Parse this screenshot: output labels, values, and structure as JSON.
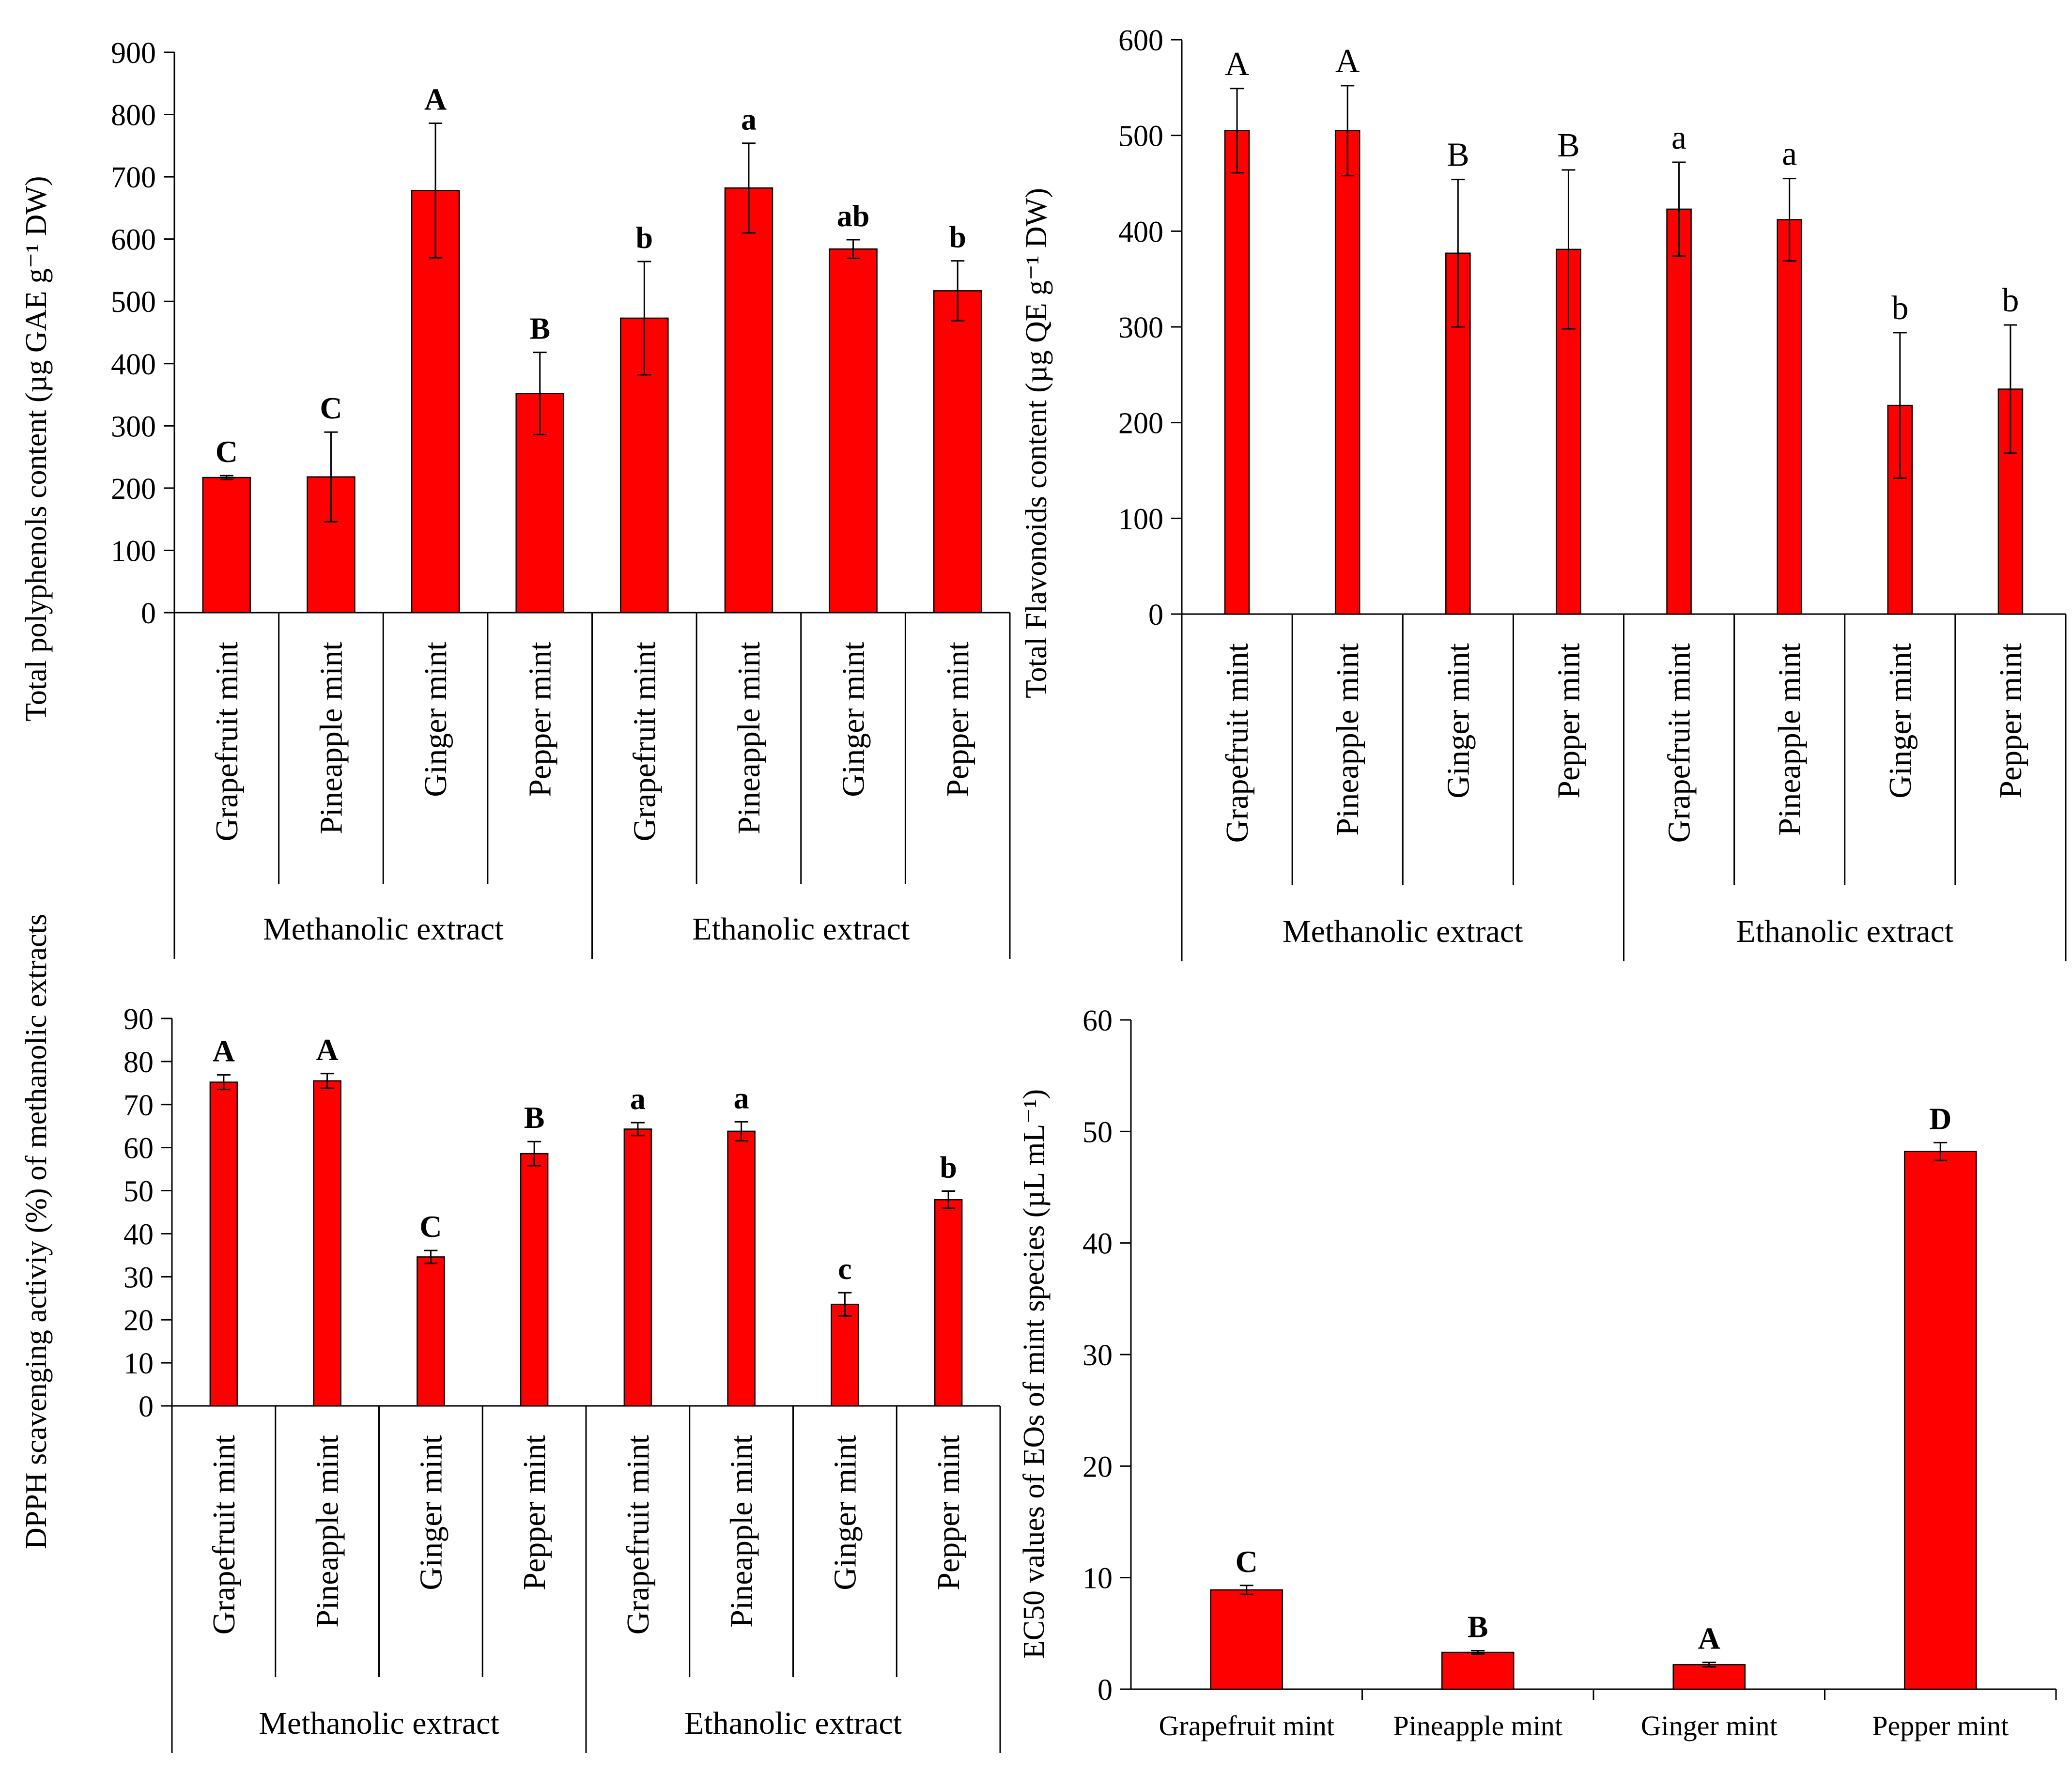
{
  "chart_data": [
    {
      "type": "bar",
      "ylabel": "Total polyphenols content (µg GAE g⁻¹ DW)",
      "ylim": [
        0,
        900
      ],
      "ystep": 100,
      "groups": [
        "Methanolic extract",
        "Ethanolic  extract"
      ],
      "categories": [
        "Grapefruit mint",
        "Pineapple mint",
        "Ginger mint",
        "Pepper mint",
        "Grapefruit mint",
        "Pineapple mint",
        "Ginger mint",
        "Pepper mint"
      ],
      "values": [
        217,
        218,
        678,
        352,
        473,
        682,
        584,
        517
      ],
      "errors": [
        3,
        72,
        108,
        66,
        91,
        72,
        15,
        48
      ],
      "letters": [
        "C",
        "C",
        "A",
        "B",
        "b",
        "a",
        "ab",
        "b"
      ],
      "letter_weight": "bold"
    },
    {
      "type": "bar",
      "ylabel": "Total Flavonoids content (µg QE g⁻¹ DW)",
      "ylim": [
        0,
        600
      ],
      "ystep": 100,
      "groups": [
        "Methanolic extract",
        "Ethanolic  extract"
      ],
      "categories": [
        "Grapefruit mint",
        "Pineapple mint",
        "Ginger mint",
        "Pepper mint",
        "Grapefruit mint",
        "Pineapple mint",
        "Ginger mint",
        "Pepper mint"
      ],
      "values": [
        505,
        505,
        377,
        381,
        423,
        412,
        218,
        235
      ],
      "errors": [
        44,
        47,
        77,
        83,
        49,
        43,
        76,
        67
      ],
      "letters": [
        "A",
        "A",
        "B",
        "B",
        "a",
        "a",
        "b",
        "b"
      ],
      "letter_weight": "normal"
    },
    {
      "type": "bar",
      "ylabel": "DPPH scavenging activiy (%) of methanolic extracts",
      "ylim": [
        0,
        90
      ],
      "ystep": 10,
      "groups": [
        "Methanolic extract",
        "Ethanolic  extract"
      ],
      "categories": [
        "Grapefruit mint",
        "Pineapple mint",
        "Ginger mint",
        "Pepper mint",
        "Grapefruit mint",
        "Pineapple mint",
        "Ginger mint",
        "Pepper mint"
      ],
      "values": [
        75.2,
        75.5,
        34.6,
        58.6,
        64.3,
        63.8,
        23.6,
        47.9
      ],
      "errors": [
        1.7,
        1.7,
        1.5,
        2.8,
        1.5,
        2.2,
        2.7,
        2.0
      ],
      "letters": [
        "A",
        "A",
        "C",
        "B",
        "a",
        "a",
        "c",
        "b"
      ],
      "letter_weight": "bold"
    },
    {
      "type": "bar",
      "ylabel": "EC50 values of EOs of mint species (µL mL⁻¹)",
      "ylim": [
        0,
        60
      ],
      "ystep": 10,
      "groups": [],
      "categories": [
        "Grapefruit mint",
        "Pineapple mint",
        "Ginger mint",
        "Pepper mint"
      ],
      "values": [
        8.9,
        3.3,
        2.2,
        48.2
      ],
      "errors": [
        0.4,
        0.15,
        0.2,
        0.8
      ],
      "letters": [
        "C",
        "B",
        "A",
        "D"
      ],
      "letter_weight": "bold"
    }
  ]
}
